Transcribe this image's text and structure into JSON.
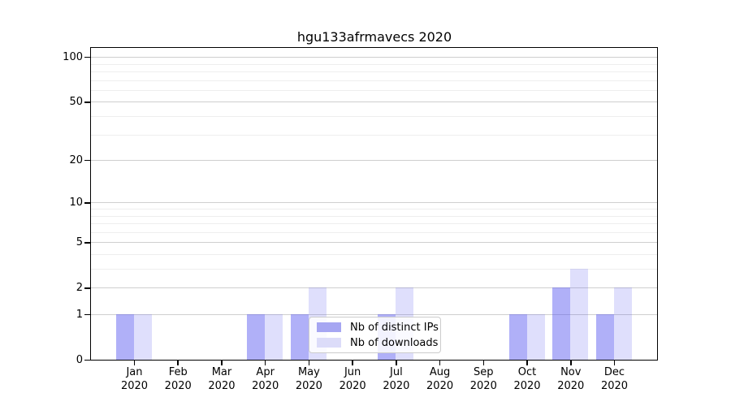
{
  "chart_data": {
    "type": "bar",
    "title": "hgu133afrmavecs 2020",
    "categories": [
      "Jan",
      "Feb",
      "Mar",
      "Apr",
      "May",
      "Jun",
      "Jul",
      "Aug",
      "Sep",
      "Oct",
      "Nov",
      "Dec"
    ],
    "year_label": "2020",
    "series": [
      {
        "name": "Nb of distinct IPs",
        "swatch_color": "#a6a6f2",
        "fill": "rgba(80,80,240,0.45)",
        "values": [
          1,
          0,
          0,
          1,
          1,
          0,
          1,
          0,
          0,
          1,
          2,
          1
        ]
      },
      {
        "name": "Nb of downloads",
        "swatch_color": "#dcdcf9",
        "fill": "rgba(80,80,240,0.18)",
        "values": [
          1,
          0,
          0,
          1,
          2,
          0,
          2,
          0,
          0,
          1,
          3,
          2
        ]
      }
    ],
    "xlabel": "",
    "ylabel": "",
    "y_axis": {
      "scale": "log1p",
      "tick_values": [
        0,
        1,
        2,
        5,
        10,
        20,
        50,
        100
      ],
      "minor_gridline_values": [
        3,
        4,
        6,
        7,
        8,
        9,
        30,
        40,
        60,
        70,
        80,
        90
      ],
      "max": 115
    },
    "grid": "on",
    "legend_position": "lower-center-inside",
    "colors": {
      "major_grid": "#cfcfcf",
      "minor_grid": "#eeeeee",
      "axis_frame": "#000000",
      "background": "#ffffff"
    }
  }
}
